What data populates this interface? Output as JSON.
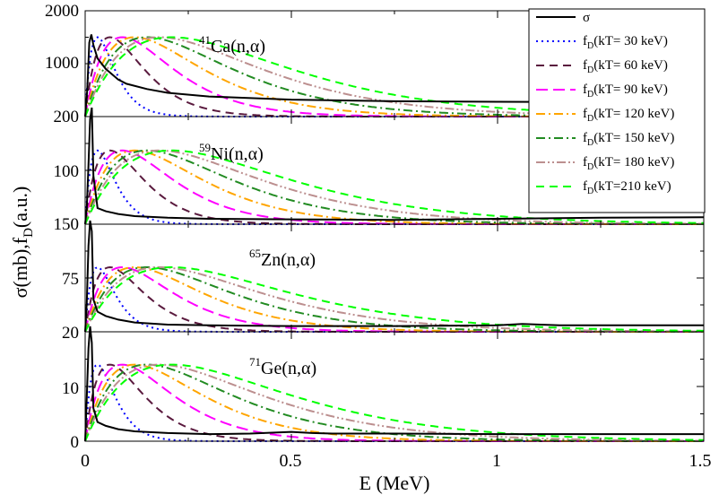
{
  "chart_data": {
    "type": "line",
    "xlabel": "E (MeV)",
    "ylabel_main": "σ(mb),f",
    "ylabel_sub": "D",
    "ylabel_tail": "(a.u.)",
    "xlim": [
      0,
      1.5
    ],
    "xticks": [
      0,
      0.5,
      1,
      1.5
    ],
    "xtick_labels": [
      "0",
      "0.5",
      "1",
      "1.5"
    ],
    "grid": false,
    "legend_position": "top-right",
    "legend": [
      {
        "label_main": "σ",
        "label_sub": "",
        "label_tail": "",
        "color": "#000000",
        "dash": "solid"
      },
      {
        "label_main": "f",
        "label_sub": "D",
        "label_tail": "(kT= 30 keV)",
        "color": "#0000ff",
        "dash": "dot"
      },
      {
        "label_main": "f",
        "label_sub": "D",
        "label_tail": "(kT= 60 keV)",
        "color": "#5a1a3e",
        "dash": "dash"
      },
      {
        "label_main": "f",
        "label_sub": "D",
        "label_tail": "(kT= 90 keV)",
        "color": "#ff00ff",
        "dash": "longdash"
      },
      {
        "label_main": "f",
        "label_sub": "D",
        "label_tail": "(kT= 120 keV)",
        "color": "#ffa500",
        "dash": "dashdot"
      },
      {
        "label_main": "f",
        "label_sub": "D",
        "label_tail": "(kT= 150 keV)",
        "color": "#228b22",
        "dash": "dashdot"
      },
      {
        "label_main": "f",
        "label_sub": "D",
        "label_tail": "(kT= 180 keV)",
        "color": "#bc8f8f",
        "dash": "dashdotdot"
      },
      {
        "label_main": "f",
        "label_sub": "D",
        "label_tail": "(kT=210 keV)",
        "color": "#00ff00",
        "dash": "dash"
      }
    ],
    "kT_keV": [
      30,
      60,
      90,
      120,
      150,
      180,
      210
    ],
    "panels": [
      {
        "label_sup": "41",
        "label_main": "Ca(n,α)",
        "ylim": [
          0,
          2000
        ],
        "ytick_labels": [
          {
            "value": 2000,
            "text": "2000"
          },
          {
            "value": 1000,
            "text": "1000"
          }
        ],
        "bottom_label": "200",
        "fD_peak": 1500,
        "sigma": {
          "E": [
            0.0,
            0.005,
            0.01,
            0.015,
            0.02,
            0.03,
            0.05,
            0.08,
            0.1,
            0.15,
            0.2,
            0.3,
            0.5,
            0.75,
            1.0,
            1.25,
            1.5
          ],
          "values": [
            0,
            500,
            1400,
            1550,
            1350,
            1100,
            900,
            700,
            620,
            520,
            450,
            380,
            320,
            290,
            280,
            275,
            275
          ]
        }
      },
      {
        "label_sup": "59",
        "label_main": "Ni(n,α)",
        "ylim": [
          0,
          200
        ],
        "ytick_labels": [
          {
            "value": 100,
            "text": "100"
          }
        ],
        "bottom_label": "150",
        "fD_peak": 137,
        "sigma": {
          "E": [
            0.0,
            0.004,
            0.008,
            0.012,
            0.016,
            0.02,
            0.03,
            0.05,
            0.08,
            0.12,
            0.2,
            0.3,
            0.5,
            0.75,
            1.0,
            1.25,
            1.5
          ],
          "values": [
            0,
            30,
            110,
            195,
            220,
            90,
            30,
            24,
            19,
            15,
            12,
            10,
            9,
            8,
            10,
            12,
            13
          ]
        }
      },
      {
        "label_sup": "65",
        "label_main": "Zn(n,α)",
        "ylim": [
          0,
          150
        ],
        "ytick_labels": [
          {
            "value": 75,
            "text": "75"
          }
        ],
        "bottom_label": "20",
        "fD_peak": 90,
        "sigma": {
          "E": [
            0.0,
            0.004,
            0.008,
            0.012,
            0.016,
            0.02,
            0.03,
            0.05,
            0.08,
            0.12,
            0.2,
            0.3,
            0.5,
            0.75,
            1.0,
            1.06,
            1.15,
            1.25,
            1.5
          ],
          "values": [
            0,
            40,
            120,
            155,
            140,
            45,
            28,
            22,
            17,
            13,
            10,
            9,
            8,
            8,
            9,
            11,
            9,
            9,
            9
          ]
        }
      },
      {
        "label_sup": "71",
        "label_main": "Ge(n,α)",
        "ylim": [
          0,
          20
        ],
        "ytick_labels": [
          {
            "value": 10,
            "text": "10"
          },
          {
            "value": 0,
            "text": "0"
          }
        ],
        "bottom_label": "",
        "fD_peak": 14,
        "sigma": {
          "E": [
            0.0,
            0.004,
            0.008,
            0.012,
            0.016,
            0.02,
            0.03,
            0.05,
            0.08,
            0.12,
            0.2,
            0.3,
            0.4,
            0.5,
            0.55,
            0.6,
            0.75,
            1.0,
            1.25,
            1.5
          ],
          "values": [
            0,
            8,
            17,
            21,
            18,
            6,
            3.5,
            2.8,
            2.2,
            1.8,
            1.5,
            1.3,
            1.4,
            1.7,
            1.5,
            1.4,
            1.4,
            1.3,
            1.3,
            1.3
          ]
        }
      }
    ]
  }
}
